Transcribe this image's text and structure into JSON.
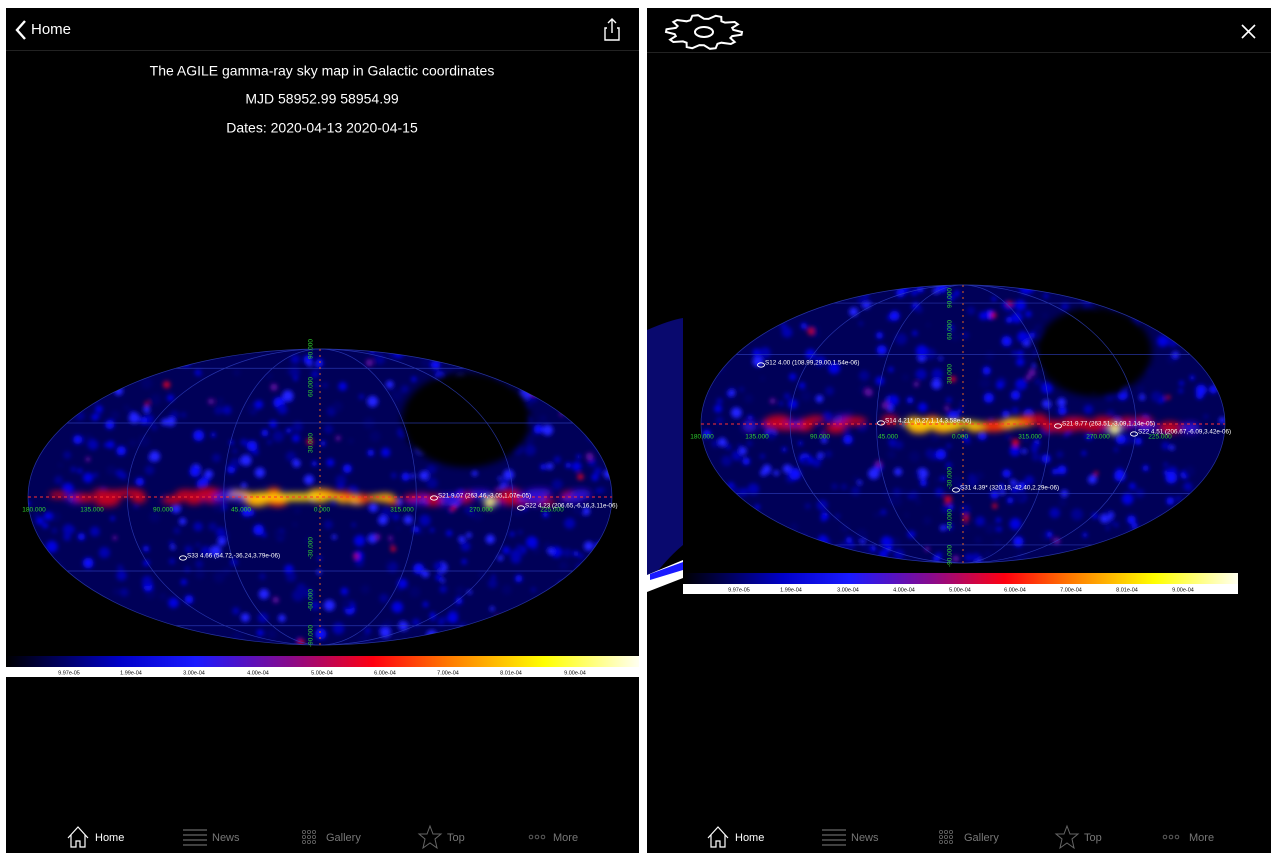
{
  "left_screen": {
    "back_button": "Home",
    "title_lines": [
      "The AGILE gamma-ray sky map in Galactic coordinates",
      "MJD 58952.99 58954.99",
      "Dates: 2020-04-13 2020-04-15"
    ],
    "sources": [
      "S21 9.07 (263.46,-3.05,1.07e-05)",
      "S22 4.23 (206.65,-6.16,3.11e-06)",
      "S33 4.66 (54.72,-36.24,3.79e-06)"
    ]
  },
  "right_screen": {
    "sources": [
      "S12 4.00 (108.99,29.00,1.54e-06)",
      "S14 4.21* (0.27,1.14,3.58e-06)",
      "S21 9.77 (263.51,-3.09,1.14e-05)",
      "S22 4.51 (206.67,-6.09,3.42e-06)",
      "S31 4.39* (320.18,-42.40,2.29e-06)"
    ]
  },
  "map_axes": {
    "longitude_labels": [
      "180.000",
      "135.000",
      "90.000",
      "45.000",
      "0.000",
      "315.000",
      "270.000",
      "225.000"
    ],
    "latitude_labels": [
      "90.000",
      "60.000",
      "30.000",
      "-30.000",
      "-60.000",
      "-90.000"
    ]
  },
  "colorbar_labels": [
    "9.97e-05",
    "1.99e-04",
    "3.00e-04",
    "4.00e-04",
    "5.00e-04",
    "6.00e-04",
    "7.00e-04",
    "8.01e-04",
    "9.00e-04"
  ],
  "tab_bar": [
    "Home",
    "News",
    "Gallery",
    "Top",
    "More"
  ]
}
